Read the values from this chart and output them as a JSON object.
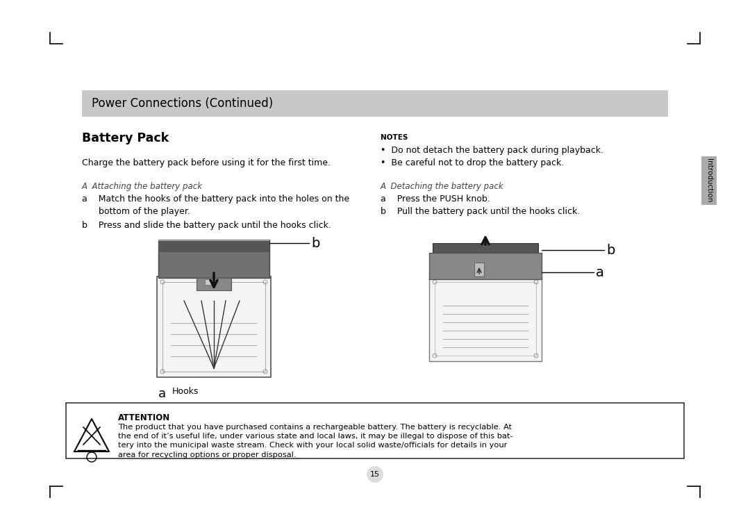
{
  "bg_color": "#ffffff",
  "header_bg": "#c8c8c8",
  "header_text": "Power Connections (Continued)",
  "section_title": "Battery Pack",
  "charge_text": "Charge the battery pack before using it for the first time.",
  "attach_header": "A  Attaching the battery pack",
  "attach_a_line1": "a    Match the hooks of the battery pack into the holes on the",
  "attach_a_line2": "      bottom of the player.",
  "attach_b_text": "b    Press and slide the battery pack until the hooks click.",
  "notes_header": "NOTES",
  "note1": "•  Do not detach the battery pack during playback.",
  "note2": "•  Be careful not to drop the battery pack.",
  "detach_header": "A  Detaching the battery pack",
  "detach_a_text": "a    Press the PUSH knob.",
  "detach_b_text": "b    Pull the battery pack until the hooks click.",
  "attention_title": "ATTENTION",
  "attention_text": "The product that you have purchased contains a rechargeable battery. The battery is recyclable. At\nthe end of it’s useful life, under various state and local laws, it may be illegal to dispose of this bat-\ntery into the municipal waste stream. Check with your local solid waste/officials for details in your\narea for recycling options or proper disposal.",
  "page_number": "15",
  "intro_label": "Introduction"
}
